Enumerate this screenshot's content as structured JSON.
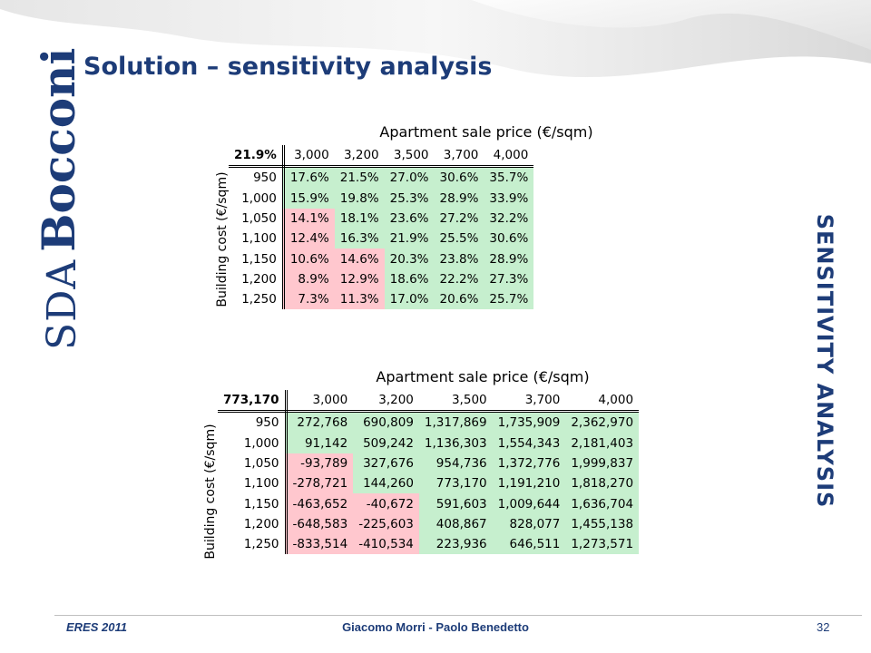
{
  "slide": {
    "title": "Solution – sensitivity analysis",
    "side_label": "SENSITIVITY ANALYSIS",
    "logo": {
      "sda": "SDA",
      "bocconi": "Bocconi"
    }
  },
  "footer": {
    "left": "ERES 2011",
    "center": "Giacomo Morri - Paolo Benedetto",
    "page": "32"
  },
  "colors": {
    "positive_fill": "#c6efce",
    "negative_fill": "#ffc7ce",
    "brand_blue": "#1d3c78"
  },
  "tables": [
    {
      "column_header": "Apartment sale price (€/sqm)",
      "row_header": "Building cost (€/sqm)",
      "corner": "21.9%",
      "columns": [
        "3,000",
        "3,200",
        "3,500",
        "3,700",
        "4,000"
      ],
      "rows": [
        {
          "label": "950",
          "cells": [
            "17.6%",
            "21.5%",
            "27.0%",
            "30.6%",
            "35.7%"
          ],
          "signs": [
            "pos",
            "pos",
            "pos",
            "pos",
            "pos"
          ]
        },
        {
          "label": "1,000",
          "cells": [
            "15.9%",
            "19.8%",
            "25.3%",
            "28.9%",
            "33.9%"
          ],
          "signs": [
            "pos",
            "pos",
            "pos",
            "pos",
            "pos"
          ]
        },
        {
          "label": "1,050",
          "cells": [
            "14.1%",
            "18.1%",
            "23.6%",
            "27.2%",
            "32.2%"
          ],
          "signs": [
            "neg",
            "pos",
            "pos",
            "pos",
            "pos"
          ]
        },
        {
          "label": "1,100",
          "cells": [
            "12.4%",
            "16.3%",
            "21.9%",
            "25.5%",
            "30.6%"
          ],
          "signs": [
            "neg",
            "pos",
            "pos",
            "pos",
            "pos"
          ]
        },
        {
          "label": "1,150",
          "cells": [
            "10.6%",
            "14.6%",
            "20.3%",
            "23.8%",
            "28.9%"
          ],
          "signs": [
            "neg",
            "neg",
            "pos",
            "pos",
            "pos"
          ]
        },
        {
          "label": "1,200",
          "cells": [
            "8.9%",
            "12.9%",
            "18.6%",
            "22.2%",
            "27.3%"
          ],
          "signs": [
            "neg",
            "neg",
            "pos",
            "pos",
            "pos"
          ]
        },
        {
          "label": "1,250",
          "cells": [
            "7.3%",
            "11.3%",
            "17.0%",
            "20.6%",
            "25.7%"
          ],
          "signs": [
            "neg",
            "neg",
            "pos",
            "pos",
            "pos"
          ]
        }
      ]
    },
    {
      "column_header": "Apartment sale price (€/sqm)",
      "row_header": "Building cost (€/sqm)",
      "corner": "773,170",
      "columns": [
        "3,000",
        "3,200",
        "3,500",
        "3,700",
        "4,000"
      ],
      "rows": [
        {
          "label": "950",
          "cells": [
            "272,768",
            "690,809",
            "1,317,869",
            "1,735,909",
            "2,362,970"
          ],
          "signs": [
            "pos",
            "pos",
            "pos",
            "pos",
            "pos"
          ]
        },
        {
          "label": "1,000",
          "cells": [
            "91,142",
            "509,242",
            "1,136,303",
            "1,554,343",
            "2,181,403"
          ],
          "signs": [
            "pos",
            "pos",
            "pos",
            "pos",
            "pos"
          ]
        },
        {
          "label": "1,050",
          "cells": [
            "-93,789",
            "327,676",
            "954,736",
            "1,372,776",
            "1,999,837"
          ],
          "signs": [
            "neg",
            "pos",
            "pos",
            "pos",
            "pos"
          ]
        },
        {
          "label": "1,100",
          "cells": [
            "-278,721",
            "144,260",
            "773,170",
            "1,191,210",
            "1,818,270"
          ],
          "signs": [
            "neg",
            "pos",
            "pos",
            "pos",
            "pos"
          ]
        },
        {
          "label": "1,150",
          "cells": [
            "-463,652",
            "-40,672",
            "591,603",
            "1,009,644",
            "1,636,704"
          ],
          "signs": [
            "neg",
            "neg",
            "pos",
            "pos",
            "pos"
          ]
        },
        {
          "label": "1,200",
          "cells": [
            "-648,583",
            "-225,603",
            "408,867",
            "828,077",
            "1,455,138"
          ],
          "signs": [
            "neg",
            "neg",
            "pos",
            "pos",
            "pos"
          ]
        },
        {
          "label": "1,250",
          "cells": [
            "-833,514",
            "-410,534",
            "223,936",
            "646,511",
            "1,273,571"
          ],
          "signs": [
            "neg",
            "neg",
            "pos",
            "pos",
            "pos"
          ]
        }
      ]
    }
  ]
}
